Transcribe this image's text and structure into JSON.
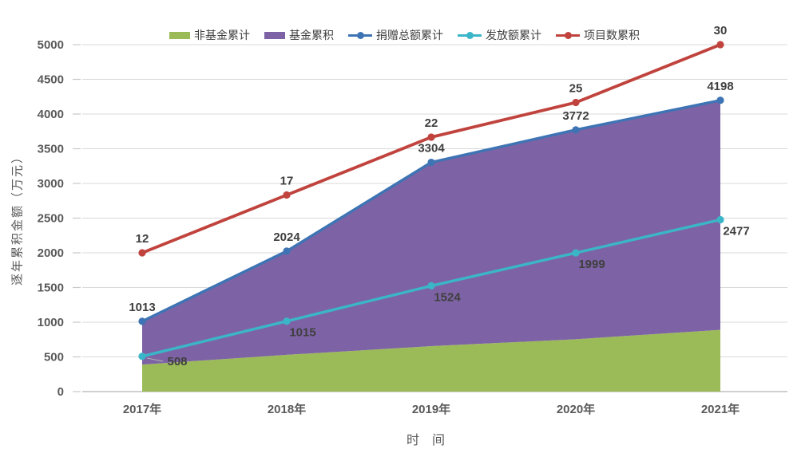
{
  "axes": {
    "y_title": "逐年累积金额（万元）",
    "x_title": "时　间",
    "y_ticks": [
      0,
      500,
      1000,
      1500,
      2000,
      2500,
      3000,
      3500,
      4000,
      4500,
      5000
    ],
    "x_labels": [
      "2017年",
      "2018年",
      "2019年",
      "2020年",
      "2021年"
    ]
  },
  "legend": {
    "items": [
      {
        "label": "非基金累计",
        "color": "#9BBB59",
        "marker": "area"
      },
      {
        "label": "基金累积",
        "color": "#7D63A5",
        "marker": "area"
      },
      {
        "label": "捐赠总额累计",
        "color": "#3E74B4",
        "marker": "line"
      },
      {
        "label": "发放额累计",
        "color": "#3BB6C9",
        "marker": "line"
      },
      {
        "label": "项目数累积",
        "color": "#C0433E",
        "marker": "line"
      }
    ]
  },
  "chart_data": {
    "type": "area+line combo",
    "categories": [
      "2017年",
      "2018年",
      "2019年",
      "2020年",
      "2021年"
    ],
    "title": "",
    "xlabel": "时　间",
    "ylabel": "逐年累积金额（万元）",
    "ylim": [
      0,
      5000
    ],
    "secondary_ylim": [
      0,
      30
    ],
    "grid": true,
    "legend_position": "top-center",
    "series": [
      {
        "name": "非基金累计",
        "type": "area",
        "stacked": true,
        "color": "#9BBB59",
        "values": [
          390,
          530,
          655,
          755,
          890
        ],
        "values_estimated_from_pixels": true,
        "data_labels": false
      },
      {
        "name": "基金累积",
        "type": "area",
        "stacked": true,
        "color": "#7D63A5",
        "values": [
          623,
          1494,
          2649,
          3017,
          3308
        ],
        "values_estimated_from_pixels": true,
        "data_labels": false,
        "stack_totals": [
          1013,
          2024,
          3304,
          3772,
          4198
        ]
      },
      {
        "name": "捐赠总额累计",
        "type": "line",
        "color": "#3E74B4",
        "values": [
          1013,
          2024,
          3304,
          3772,
          4198
        ],
        "data_labels": true
      },
      {
        "name": "发放额累计",
        "type": "line",
        "color": "#3BB6C9",
        "values": [
          508,
          1015,
          1524,
          1999,
          2477
        ],
        "data_labels": true
      },
      {
        "name": "项目数累积",
        "type": "line",
        "color": "#C0433E",
        "axis": "secondary",
        "values": [
          12,
          17,
          22,
          25,
          30
        ],
        "data_labels": true
      }
    ]
  },
  "style_colors": {
    "gridline": "#d9d9d9",
    "axis_line": "#b3b3b3",
    "tick_mark": "#c9c9c9",
    "tick_text": "#595959",
    "data_label_text": "#3f3f3f",
    "background": "#ffffff"
  }
}
